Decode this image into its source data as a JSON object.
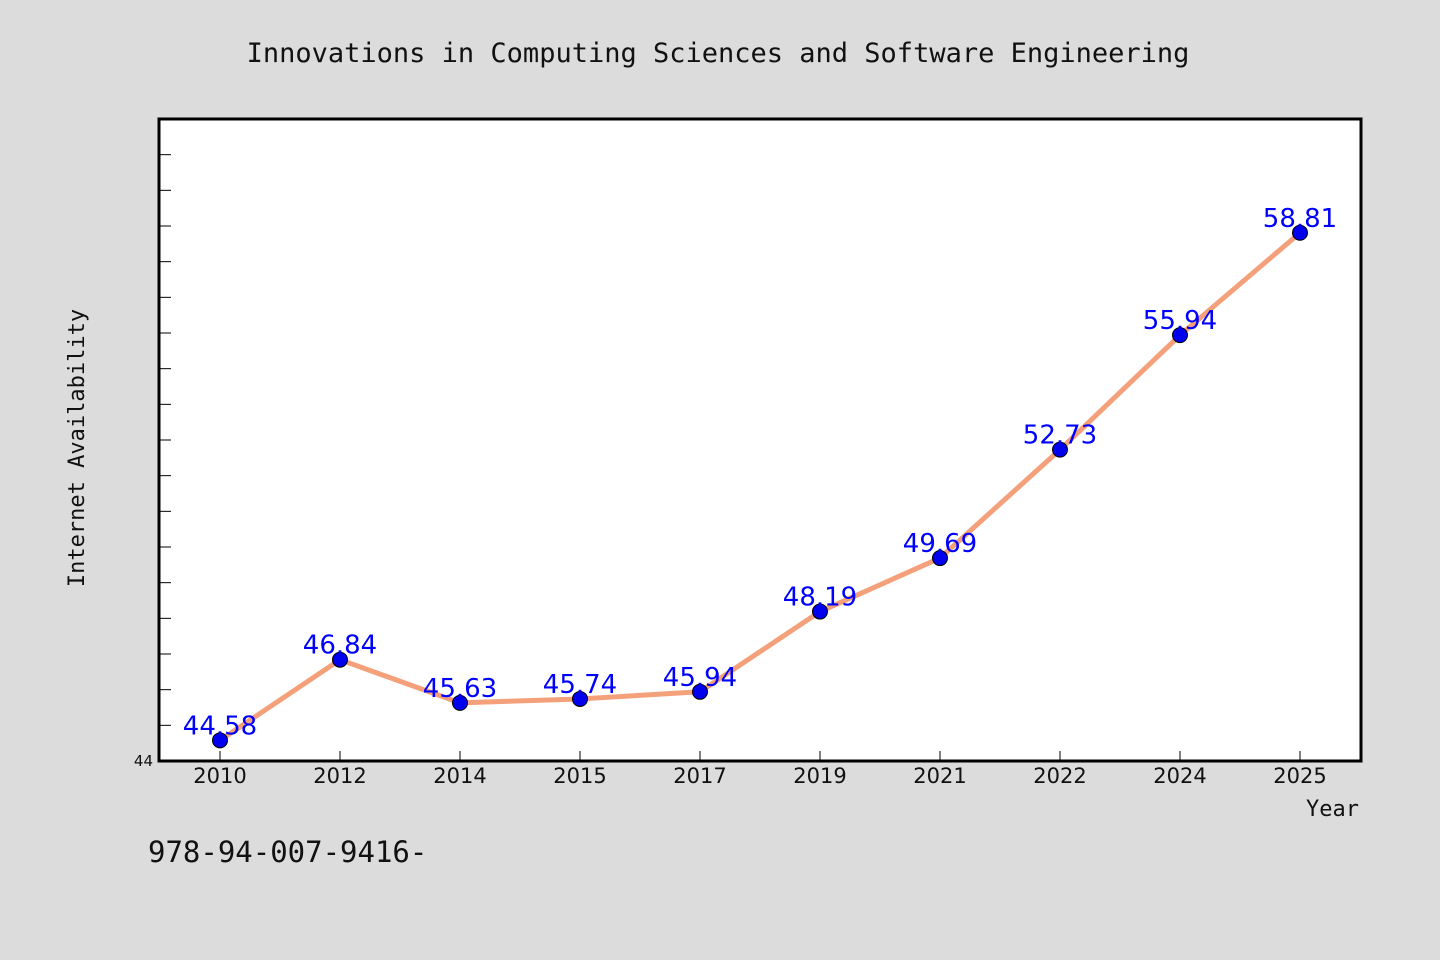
{
  "chart_data": {
    "type": "line",
    "title": "Innovations in Computing Sciences and Software Engineering",
    "xlabel": "Year",
    "ylabel": "Internet Availability",
    "categories": [
      "2010",
      "2012",
      "2014",
      "2015",
      "2017",
      "2019",
      "2021",
      "2022",
      "2024",
      "2025"
    ],
    "series": [
      {
        "values": [
          44.58,
          46.84,
          45.63,
          45.74,
          45.94,
          48.19,
          49.69,
          52.73,
          55.94,
          58.81
        ],
        "labels": [
          "44.58",
          "46.84",
          "45.63",
          "45.74",
          "45.94",
          "48.19",
          "49.69",
          "52.73",
          "55.94",
          "58.81"
        ]
      }
    ],
    "ylim": [
      44,
      62
    ],
    "y_tick_labels": [
      "44"
    ],
    "grid": false,
    "colors": {
      "line": "#f4a07a",
      "marker": "#0000ee",
      "label": "#0000ff",
      "plot_bg": "#ffffff",
      "page_bg": "#dcdcdc"
    }
  },
  "footer": {
    "code": "978-94-007-9416-"
  }
}
